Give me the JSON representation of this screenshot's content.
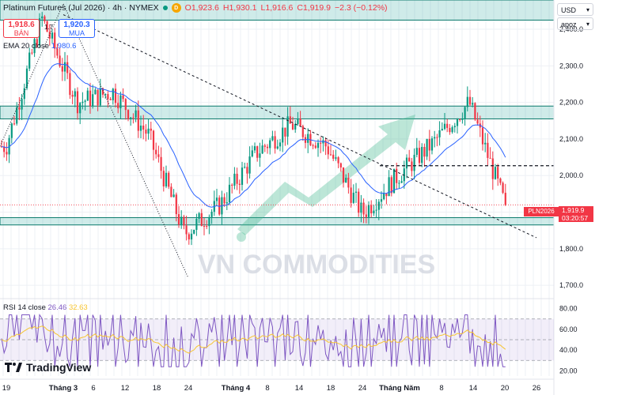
{
  "header": {
    "title": "Platinum Futures (Jul 2026) · 4h · NYMEX",
    "d_badge": "D",
    "open": "O1,923.6",
    "high": "H1,930.1",
    "low": "L1,916.6",
    "close": "C1,919.9",
    "change": "−2.3 (−0.12%)"
  },
  "trade": {
    "sell_price": "1,918.6",
    "sell_label": "BÁN",
    "spread": "1.7",
    "buy_price": "1,920.3",
    "buy_label": "MUA"
  },
  "indicators": {
    "ema_label": "EMA 20 close",
    "ema_value": "1,980.6",
    "rsi_label": "RSI 14 close",
    "rsi_value": "26.46",
    "rsi_ma_value": "32.63"
  },
  "right_panel": {
    "currency": "USD",
    "scale": "apoz",
    "symbol_tag": "PLN2026",
    "last_price": "1,919.9",
    "countdown": "03:20:57"
  },
  "branding": {
    "watermark": "VN COMMODITIES",
    "logo_text": "TradingView"
  },
  "colors": {
    "up": "#089981",
    "down": "#f23645",
    "ema": "#2962ff",
    "rsi": "#7e57c2",
    "rsi_ma": "#f7c531",
    "zone": "#26a69a"
  },
  "chart_data": {
    "type": "candlestick",
    "price_axis": {
      "ticks": [
        1700,
        1800,
        1900,
        2000,
        2100,
        2200,
        2300,
        2400
      ],
      "tick_labels": [
        "1,700.0",
        "1,800.0",
        "1,900.0",
        "2,000.0",
        "2,100.0",
        "2,200.0",
        "2,300.0",
        "2,400.0"
      ],
      "range": [
        1670,
        2480
      ]
    },
    "x_axis": {
      "tick_labels": [
        "19",
        "Tháng 3",
        "6",
        "12",
        "18",
        "24",
        "Tháng 4",
        "8",
        "14",
        "18",
        "24",
        "Tháng Năm",
        "8",
        "14",
        "20",
        "26"
      ]
    },
    "rsi_axis": {
      "ticks": [
        20,
        40,
        60,
        80
      ],
      "tick_labels": [
        "20.00",
        "40.00",
        "60.00",
        "80.00"
      ],
      "levels": [
        30,
        50,
        70
      ]
    },
    "zones": [
      {
        "from": 2425,
        "to": 2480
      },
      {
        "from": 2155,
        "to": 2190
      },
      {
        "from": 1865,
        "to": 1885
      }
    ],
    "dashed_level": 2027,
    "trendline": {
      "from_date": "Tháng 3",
      "from_price": 2440,
      "to_date": "26",
      "to_price": 1830
    },
    "price_path": [
      [
        "19",
        2080
      ],
      [
        "Tháng 3",
        2430
      ],
      [
        "6",
        2200
      ],
      [
        "12",
        2230
      ],
      [
        "18",
        2110
      ],
      [
        "24",
        1840
      ],
      [
        "Tháng 4",
        1920
      ],
      [
        "8",
        2060
      ],
      [
        "14",
        2140
      ],
      [
        "18",
        2080
      ],
      [
        "24",
        1895
      ],
      [
        "Tháng Năm",
        2000
      ],
      [
        "8",
        2090
      ],
      [
        "14",
        2200
      ],
      [
        "20",
        1920
      ]
    ],
    "last_close": 1919.9
  }
}
